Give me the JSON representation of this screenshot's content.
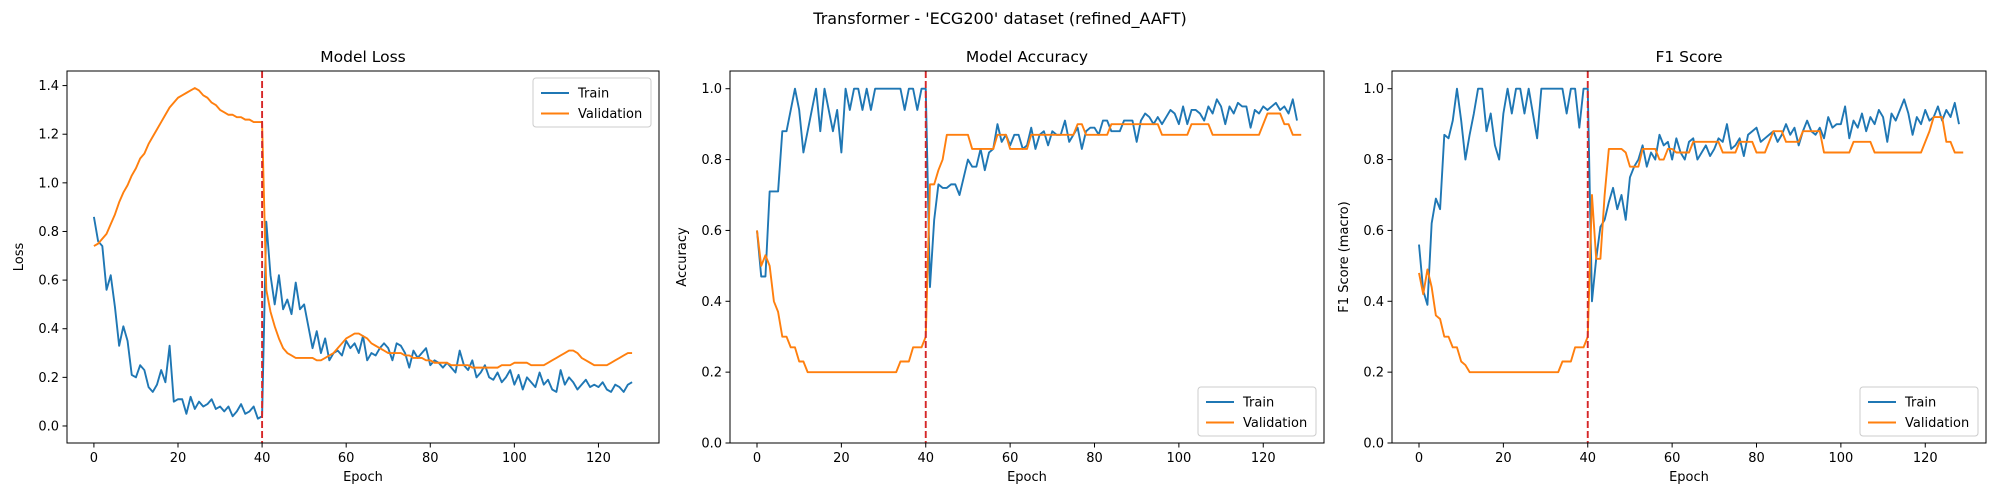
{
  "suptitle": "Transformer - 'ECG200' dataset (refined_AAFT)",
  "colors": {
    "train": "#1f77b4",
    "validation": "#ff7f0e",
    "marker": "#d62728"
  },
  "chart_data": [
    {
      "type": "line",
      "title": "Model Loss",
      "xlabel": "Epoch",
      "ylabel": "Loss",
      "xlim": [
        -6.4,
        134.4
      ],
      "ylim": [
        -0.07,
        1.46
      ],
      "xticks": [
        0,
        20,
        40,
        60,
        80,
        100,
        120
      ],
      "yticks": [
        0.0,
        0.2,
        0.4,
        0.6,
        0.8,
        1.0,
        1.2,
        1.4
      ],
      "ytick_decimals": 1,
      "legend": "upper right",
      "vline_x": 40,
      "series": [
        {
          "name": "Train",
          "color": "#1f77b4",
          "values": [
            0.86,
            0.76,
            0.74,
            0.56,
            0.62,
            0.49,
            0.33,
            0.41,
            0.35,
            0.21,
            0.2,
            0.25,
            0.23,
            0.16,
            0.14,
            0.17,
            0.23,
            0.18,
            0.33,
            0.1,
            0.11,
            0.11,
            0.05,
            0.12,
            0.07,
            0.1,
            0.08,
            0.09,
            0.11,
            0.07,
            0.08,
            0.06,
            0.08,
            0.04,
            0.06,
            0.09,
            0.05,
            0.06,
            0.08,
            0.03,
            0.04,
            0.84,
            0.62,
            0.5,
            0.62,
            0.48,
            0.52,
            0.46,
            0.59,
            0.48,
            0.5,
            0.41,
            0.32,
            0.39,
            0.3,
            0.36,
            0.27,
            0.3,
            0.31,
            0.29,
            0.35,
            0.32,
            0.34,
            0.3,
            0.37,
            0.27,
            0.3,
            0.29,
            0.32,
            0.34,
            0.32,
            0.27,
            0.34,
            0.33,
            0.3,
            0.24,
            0.31,
            0.28,
            0.3,
            0.32,
            0.25,
            0.27,
            0.26,
            0.24,
            0.26,
            0.24,
            0.22,
            0.31,
            0.25,
            0.23,
            0.27,
            0.2,
            0.22,
            0.25,
            0.2,
            0.19,
            0.22,
            0.18,
            0.2,
            0.23,
            0.17,
            0.21,
            0.15,
            0.2,
            0.18,
            0.16,
            0.22,
            0.17,
            0.19,
            0.15,
            0.14,
            0.23,
            0.17,
            0.2,
            0.18,
            0.15,
            0.17,
            0.19,
            0.16,
            0.17,
            0.16,
            0.18,
            0.15,
            0.14,
            0.17,
            0.16,
            0.14,
            0.17,
            0.18
          ]
        },
        {
          "name": "Validation",
          "color": "#ff7f0e",
          "values": [
            0.74,
            0.75,
            0.77,
            0.79,
            0.83,
            0.87,
            0.92,
            0.96,
            0.99,
            1.03,
            1.06,
            1.1,
            1.12,
            1.16,
            1.19,
            1.22,
            1.25,
            1.28,
            1.31,
            1.33,
            1.35,
            1.36,
            1.37,
            1.38,
            1.39,
            1.38,
            1.36,
            1.35,
            1.33,
            1.32,
            1.3,
            1.29,
            1.28,
            1.28,
            1.27,
            1.27,
            1.26,
            1.26,
            1.25,
            1.25,
            1.25,
            0.56,
            0.47,
            0.41,
            0.36,
            0.32,
            0.3,
            0.29,
            0.28,
            0.28,
            0.28,
            0.28,
            0.28,
            0.27,
            0.27,
            0.28,
            0.29,
            0.3,
            0.32,
            0.34,
            0.36,
            0.37,
            0.38,
            0.38,
            0.37,
            0.36,
            0.34,
            0.33,
            0.32,
            0.31,
            0.3,
            0.3,
            0.3,
            0.3,
            0.29,
            0.29,
            0.28,
            0.28,
            0.28,
            0.27,
            0.27,
            0.26,
            0.26,
            0.26,
            0.26,
            0.25,
            0.25,
            0.25,
            0.25,
            0.25,
            0.24,
            0.24,
            0.24,
            0.24,
            0.24,
            0.24,
            0.24,
            0.25,
            0.25,
            0.25,
            0.26,
            0.26,
            0.26,
            0.26,
            0.25,
            0.25,
            0.25,
            0.25,
            0.26,
            0.27,
            0.28,
            0.29,
            0.3,
            0.31,
            0.31,
            0.3,
            0.28,
            0.27,
            0.26,
            0.25,
            0.25,
            0.25,
            0.25,
            0.26,
            0.27,
            0.28,
            0.29,
            0.3,
            0.3
          ]
        }
      ]
    },
    {
      "type": "line",
      "title": "Model Accuracy",
      "xlabel": "Epoch",
      "ylabel": "Accuracy",
      "xlim": [
        -6.4,
        134.4
      ],
      "ylim": [
        0.0,
        1.05
      ],
      "xticks": [
        0,
        20,
        40,
        60,
        80,
        100,
        120
      ],
      "yticks": [
        0.0,
        0.2,
        0.4,
        0.6,
        0.8,
        1.0
      ],
      "ytick_decimals": 1,
      "legend": "lower right",
      "vline_x": 40,
      "series": [
        {
          "name": "Train",
          "color": "#1f77b4",
          "values": [
            0.6,
            0.47,
            0.47,
            0.71,
            0.71,
            0.71,
            0.88,
            0.88,
            0.94,
            1.0,
            0.94,
            0.82,
            0.88,
            0.94,
            1.0,
            0.88,
            1.0,
            0.94,
            0.88,
            0.94,
            0.82,
            1.0,
            0.94,
            1.0,
            1.0,
            0.94,
            1.0,
            0.94,
            1.0,
            1.0,
            1.0,
            1.0,
            1.0,
            1.0,
            1.0,
            0.94,
            1.0,
            1.0,
            0.94,
            1.0,
            1.0,
            0.44,
            0.63,
            0.73,
            0.72,
            0.72,
            0.73,
            0.73,
            0.7,
            0.75,
            0.8,
            0.78,
            0.78,
            0.83,
            0.77,
            0.82,
            0.83,
            0.9,
            0.85,
            0.87,
            0.84,
            0.87,
            0.87,
            0.83,
            0.84,
            0.89,
            0.83,
            0.87,
            0.88,
            0.84,
            0.88,
            0.87,
            0.87,
            0.91,
            0.85,
            0.87,
            0.89,
            0.83,
            0.88,
            0.89,
            0.89,
            0.87,
            0.91,
            0.91,
            0.88,
            0.88,
            0.88,
            0.91,
            0.91,
            0.91,
            0.85,
            0.91,
            0.93,
            0.92,
            0.9,
            0.92,
            0.9,
            0.92,
            0.94,
            0.93,
            0.9,
            0.95,
            0.9,
            0.94,
            0.94,
            0.93,
            0.91,
            0.95,
            0.93,
            0.97,
            0.95,
            0.9,
            0.95,
            0.93,
            0.96,
            0.95,
            0.95,
            0.89,
            0.94,
            0.93,
            0.95,
            0.94,
            0.95,
            0.96,
            0.94,
            0.95,
            0.93,
            0.97,
            0.91
          ]
        },
        {
          "name": "Validation",
          "color": "#ff7f0e",
          "values": [
            0.6,
            0.5,
            0.53,
            0.5,
            0.4,
            0.37,
            0.3,
            0.3,
            0.27,
            0.27,
            0.23,
            0.23,
            0.2,
            0.2,
            0.2,
            0.2,
            0.2,
            0.2,
            0.2,
            0.2,
            0.2,
            0.2,
            0.2,
            0.2,
            0.2,
            0.2,
            0.2,
            0.2,
            0.2,
            0.2,
            0.2,
            0.2,
            0.2,
            0.2,
            0.23,
            0.23,
            0.23,
            0.27,
            0.27,
            0.27,
            0.3,
            0.73,
            0.73,
            0.77,
            0.8,
            0.87,
            0.87,
            0.87,
            0.87,
            0.87,
            0.87,
            0.83,
            0.83,
            0.83,
            0.83,
            0.83,
            0.83,
            0.87,
            0.87,
            0.87,
            0.83,
            0.83,
            0.83,
            0.83,
            0.83,
            0.87,
            0.87,
            0.87,
            0.87,
            0.87,
            0.87,
            0.87,
            0.87,
            0.87,
            0.87,
            0.87,
            0.9,
            0.9,
            0.87,
            0.87,
            0.87,
            0.87,
            0.87,
            0.87,
            0.9,
            0.9,
            0.9,
            0.9,
            0.9,
            0.9,
            0.9,
            0.9,
            0.9,
            0.9,
            0.9,
            0.9,
            0.87,
            0.87,
            0.87,
            0.87,
            0.87,
            0.87,
            0.87,
            0.9,
            0.9,
            0.9,
            0.9,
            0.9,
            0.87,
            0.87,
            0.87,
            0.87,
            0.87,
            0.87,
            0.87,
            0.87,
            0.87,
            0.87,
            0.87,
            0.87,
            0.9,
            0.93,
            0.93,
            0.93,
            0.93,
            0.9,
            0.9,
            0.87,
            0.87,
            0.87
          ]
        }
      ]
    },
    {
      "type": "line",
      "title": "F1 Score",
      "xlabel": "Epoch",
      "ylabel": "F1 Score (macro)",
      "xlim": [
        -6.4,
        134.4
      ],
      "ylim": [
        0.0,
        1.05
      ],
      "xticks": [
        0,
        20,
        40,
        60,
        80,
        100,
        120
      ],
      "yticks": [
        0.0,
        0.2,
        0.4,
        0.6,
        0.8,
        1.0
      ],
      "ytick_decimals": 1,
      "legend": "lower right",
      "vline_x": 40,
      "series": [
        {
          "name": "Train",
          "color": "#1f77b4",
          "values": [
            0.56,
            0.43,
            0.39,
            0.62,
            0.69,
            0.66,
            0.87,
            0.86,
            0.91,
            1.0,
            0.91,
            0.8,
            0.87,
            0.93,
            1.0,
            1.0,
            0.88,
            0.93,
            0.84,
            0.8,
            0.93,
            1.0,
            0.93,
            1.0,
            1.0,
            0.93,
            1.0,
            0.93,
            0.86,
            1.0,
            1.0,
            1.0,
            1.0,
            1.0,
            1.0,
            0.93,
            1.0,
            1.0,
            0.89,
            1.0,
            1.0,
            0.4,
            0.52,
            0.61,
            0.63,
            0.68,
            0.72,
            0.66,
            0.7,
            0.63,
            0.75,
            0.78,
            0.8,
            0.84,
            0.78,
            0.82,
            0.8,
            0.87,
            0.84,
            0.85,
            0.8,
            0.86,
            0.82,
            0.8,
            0.85,
            0.86,
            0.8,
            0.82,
            0.84,
            0.81,
            0.83,
            0.86,
            0.85,
            0.9,
            0.83,
            0.84,
            0.86,
            0.81,
            0.87,
            0.88,
            0.89,
            0.85,
            0.86,
            0.87,
            0.88,
            0.85,
            0.87,
            0.9,
            0.87,
            0.89,
            0.84,
            0.88,
            0.91,
            0.88,
            0.87,
            0.89,
            0.86,
            0.92,
            0.89,
            0.9,
            0.9,
            0.95,
            0.86,
            0.91,
            0.89,
            0.93,
            0.88,
            0.92,
            0.9,
            0.94,
            0.92,
            0.85,
            0.93,
            0.91,
            0.94,
            0.97,
            0.93,
            0.87,
            0.92,
            0.9,
            0.94,
            0.91,
            0.92,
            0.95,
            0.91,
            0.94,
            0.92,
            0.96,
            0.9
          ]
        },
        {
          "name": "Validation",
          "color": "#ff7f0e",
          "values": [
            0.48,
            0.42,
            0.49,
            0.44,
            0.36,
            0.35,
            0.3,
            0.3,
            0.27,
            0.27,
            0.23,
            0.22,
            0.2,
            0.2,
            0.2,
            0.2,
            0.2,
            0.2,
            0.2,
            0.2,
            0.2,
            0.2,
            0.2,
            0.2,
            0.2,
            0.2,
            0.2,
            0.2,
            0.2,
            0.2,
            0.2,
            0.2,
            0.2,
            0.2,
            0.23,
            0.23,
            0.23,
            0.27,
            0.27,
            0.27,
            0.3,
            0.7,
            0.52,
            0.52,
            0.7,
            0.83,
            0.83,
            0.83,
            0.83,
            0.82,
            0.78,
            0.78,
            0.78,
            0.83,
            0.83,
            0.83,
            0.83,
            0.8,
            0.8,
            0.83,
            0.83,
            0.82,
            0.82,
            0.82,
            0.82,
            0.85,
            0.85,
            0.85,
            0.85,
            0.85,
            0.85,
            0.85,
            0.82,
            0.82,
            0.82,
            0.82,
            0.85,
            0.85,
            0.85,
            0.85,
            0.82,
            0.82,
            0.82,
            0.85,
            0.88,
            0.88,
            0.88,
            0.85,
            0.85,
            0.85,
            0.85,
            0.88,
            0.88,
            0.88,
            0.88,
            0.88,
            0.82,
            0.82,
            0.82,
            0.82,
            0.82,
            0.82,
            0.82,
            0.85,
            0.85,
            0.85,
            0.85,
            0.85,
            0.82,
            0.82,
            0.82,
            0.82,
            0.82,
            0.82,
            0.82,
            0.82,
            0.82,
            0.82,
            0.82,
            0.82,
            0.85,
            0.88,
            0.92,
            0.92,
            0.92,
            0.85,
            0.85,
            0.82,
            0.82,
            0.82
          ]
        }
      ]
    }
  ]
}
